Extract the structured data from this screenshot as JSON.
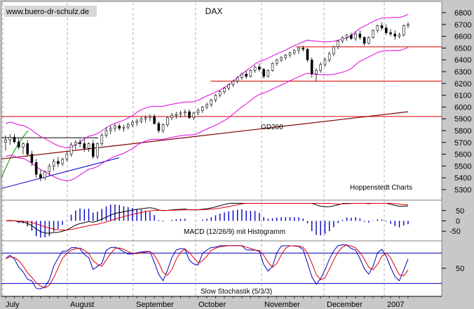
{
  "watermark": "www.buero-dr-schulz.de",
  "colors": {
    "panel_bg": "#c8c8c8",
    "plot_bg": "#ffffff",
    "candle_up": "#ffffff",
    "candle_down": "#000000",
    "bollinger": "#e000e0",
    "hline": "#e00000",
    "gd200": "#800000",
    "trend_blue": "#0000c0",
    "trend_green": "#00a000",
    "macd_line": "#000000",
    "signal_line": "#e00000",
    "histogram": "#0000c0",
    "stoch_k": "#0000c0",
    "stoch_d": "#e00000",
    "grid": "#909090"
  },
  "chart_data": [
    {
      "type": "candlestick",
      "title": "DAX",
      "source_label": "Hoppenstedt Charts",
      "y_ticks": [
        5300,
        5400,
        5500,
        5600,
        5700,
        5800,
        5900,
        6000,
        6100,
        6200,
        6300,
        6400,
        6500,
        6600,
        6700,
        6800
      ],
      "ylim": [
        5260,
        6850
      ],
      "x_labels": [
        "July",
        "August",
        "September",
        "October",
        "November",
        "December",
        "2007"
      ],
      "horizontal_lines": [
        5920,
        6220,
        6510
      ],
      "series": [
        {
          "name": "DAX",
          "points": [
            {
              "o": 5700,
              "h": 5760,
              "l": 5630,
              "c": 5720
            },
            {
              "o": 5720,
              "h": 5770,
              "l": 5680,
              "c": 5745
            },
            {
              "o": 5745,
              "h": 5770,
              "l": 5690,
              "c": 5705
            },
            {
              "o": 5705,
              "h": 5740,
              "l": 5640,
              "c": 5660
            },
            {
              "o": 5660,
              "h": 5700,
              "l": 5600,
              "c": 5690
            },
            {
              "o": 5690,
              "h": 5720,
              "l": 5580,
              "c": 5600
            },
            {
              "o": 5600,
              "h": 5630,
              "l": 5500,
              "c": 5530
            },
            {
              "o": 5530,
              "h": 5560,
              "l": 5400,
              "c": 5430
            },
            {
              "o": 5430,
              "h": 5470,
              "l": 5370,
              "c": 5400
            },
            {
              "o": 5400,
              "h": 5460,
              "l": 5380,
              "c": 5450
            },
            {
              "o": 5450,
              "h": 5520,
              "l": 5420,
              "c": 5500
            },
            {
              "o": 5500,
              "h": 5560,
              "l": 5460,
              "c": 5540
            },
            {
              "o": 5540,
              "h": 5580,
              "l": 5490,
              "c": 5520
            },
            {
              "o": 5520,
              "h": 5570,
              "l": 5500,
              "c": 5560
            },
            {
              "o": 5560,
              "h": 5620,
              "l": 5540,
              "c": 5600
            },
            {
              "o": 5600,
              "h": 5700,
              "l": 5580,
              "c": 5680
            },
            {
              "o": 5680,
              "h": 5720,
              "l": 5640,
              "c": 5700
            },
            {
              "o": 5700,
              "h": 5730,
              "l": 5660,
              "c": 5690
            },
            {
              "o": 5690,
              "h": 5730,
              "l": 5620,
              "c": 5650
            },
            {
              "o": 5650,
              "h": 5700,
              "l": 5620,
              "c": 5690
            },
            {
              "o": 5690,
              "h": 5720,
              "l": 5560,
              "c": 5580
            },
            {
              "o": 5580,
              "h": 5700,
              "l": 5560,
              "c": 5690
            },
            {
              "o": 5690,
              "h": 5780,
              "l": 5670,
              "c": 5760
            },
            {
              "o": 5760,
              "h": 5830,
              "l": 5740,
              "c": 5800
            },
            {
              "o": 5800,
              "h": 5840,
              "l": 5770,
              "c": 5820
            },
            {
              "o": 5820,
              "h": 5860,
              "l": 5790,
              "c": 5840
            },
            {
              "o": 5840,
              "h": 5860,
              "l": 5800,
              "c": 5820
            },
            {
              "o": 5820,
              "h": 5850,
              "l": 5790,
              "c": 5830
            },
            {
              "o": 5830,
              "h": 5870,
              "l": 5810,
              "c": 5850
            },
            {
              "o": 5850,
              "h": 5890,
              "l": 5830,
              "c": 5870
            },
            {
              "o": 5870,
              "h": 5900,
              "l": 5840,
              "c": 5880
            },
            {
              "o": 5880,
              "h": 5920,
              "l": 5860,
              "c": 5900
            },
            {
              "o": 5900,
              "h": 5930,
              "l": 5870,
              "c": 5910
            },
            {
              "o": 5910,
              "h": 5940,
              "l": 5880,
              "c": 5920
            },
            {
              "o": 5920,
              "h": 5940,
              "l": 5850,
              "c": 5860
            },
            {
              "o": 5860,
              "h": 5880,
              "l": 5780,
              "c": 5800
            },
            {
              "o": 5800,
              "h": 5860,
              "l": 5780,
              "c": 5850
            },
            {
              "o": 5850,
              "h": 5920,
              "l": 5830,
              "c": 5910
            },
            {
              "o": 5910,
              "h": 5950,
              "l": 5890,
              "c": 5930
            },
            {
              "o": 5930,
              "h": 5960,
              "l": 5900,
              "c": 5940
            },
            {
              "o": 5940,
              "h": 5970,
              "l": 5910,
              "c": 5950
            },
            {
              "o": 5950,
              "h": 5980,
              "l": 5920,
              "c": 5960
            },
            {
              "o": 5960,
              "h": 5980,
              "l": 5900,
              "c": 5910
            },
            {
              "o": 5910,
              "h": 5960,
              "l": 5890,
              "c": 5950
            },
            {
              "o": 5950,
              "h": 5990,
              "l": 5930,
              "c": 5970
            },
            {
              "o": 5970,
              "h": 6010,
              "l": 5950,
              "c": 6000
            },
            {
              "o": 6000,
              "h": 6040,
              "l": 5980,
              "c": 6020
            },
            {
              "o": 6020,
              "h": 6070,
              "l": 6000,
              "c": 6060
            },
            {
              "o": 6060,
              "h": 6110,
              "l": 6040,
              "c": 6100
            },
            {
              "o": 6100,
              "h": 6140,
              "l": 6080,
              "c": 6130
            },
            {
              "o": 6130,
              "h": 6170,
              "l": 6110,
              "c": 6160
            },
            {
              "o": 6160,
              "h": 6200,
              "l": 6140,
              "c": 6190
            },
            {
              "o": 6190,
              "h": 6230,
              "l": 6170,
              "c": 6220
            },
            {
              "o": 6220,
              "h": 6260,
              "l": 6200,
              "c": 6250
            },
            {
              "o": 6250,
              "h": 6290,
              "l": 6230,
              "c": 6280
            },
            {
              "o": 6280,
              "h": 6310,
              "l": 6240,
              "c": 6260
            },
            {
              "o": 6260,
              "h": 6320,
              "l": 6250,
              "c": 6310
            },
            {
              "o": 6310,
              "h": 6350,
              "l": 6290,
              "c": 6340
            },
            {
              "o": 6340,
              "h": 6370,
              "l": 6300,
              "c": 6320
            },
            {
              "o": 6320,
              "h": 6330,
              "l": 6240,
              "c": 6260
            },
            {
              "o": 6260,
              "h": 6320,
              "l": 6250,
              "c": 6310
            },
            {
              "o": 6310,
              "h": 6380,
              "l": 6300,
              "c": 6370
            },
            {
              "o": 6370,
              "h": 6410,
              "l": 6350,
              "c": 6400
            },
            {
              "o": 6400,
              "h": 6430,
              "l": 6380,
              "c": 6420
            },
            {
              "o": 6420,
              "h": 6450,
              "l": 6400,
              "c": 6440
            },
            {
              "o": 6440,
              "h": 6470,
              "l": 6420,
              "c": 6460
            },
            {
              "o": 6460,
              "h": 6490,
              "l": 6440,
              "c": 6480
            },
            {
              "o": 6480,
              "h": 6510,
              "l": 6450,
              "c": 6500
            },
            {
              "o": 6500,
              "h": 6520,
              "l": 6470,
              "c": 6490
            },
            {
              "o": 6490,
              "h": 6500,
              "l": 6380,
              "c": 6400
            },
            {
              "o": 6400,
              "h": 6420,
              "l": 6250,
              "c": 6280
            },
            {
              "o": 6280,
              "h": 6330,
              "l": 6220,
              "c": 6310
            },
            {
              "o": 6310,
              "h": 6380,
              "l": 6290,
              "c": 6360
            },
            {
              "o": 6360,
              "h": 6420,
              "l": 6340,
              "c": 6400
            },
            {
              "o": 6400,
              "h": 6470,
              "l": 6380,
              "c": 6450
            },
            {
              "o": 6450,
              "h": 6520,
              "l": 6430,
              "c": 6510
            },
            {
              "o": 6510,
              "h": 6570,
              "l": 6490,
              "c": 6560
            },
            {
              "o": 6560,
              "h": 6600,
              "l": 6540,
              "c": 6590
            },
            {
              "o": 6590,
              "h": 6620,
              "l": 6560,
              "c": 6610
            },
            {
              "o": 6610,
              "h": 6630,
              "l": 6570,
              "c": 6580
            },
            {
              "o": 6580,
              "h": 6640,
              "l": 6560,
              "c": 6620
            },
            {
              "o": 6620,
              "h": 6650,
              "l": 6570,
              "c": 6590
            },
            {
              "o": 6590,
              "h": 6600,
              "l": 6520,
              "c": 6540
            },
            {
              "o": 6540,
              "h": 6600,
              "l": 6530,
              "c": 6590
            },
            {
              "o": 6590,
              "h": 6660,
              "l": 6580,
              "c": 6650
            },
            {
              "o": 6650,
              "h": 6700,
              "l": 6630,
              "c": 6690
            },
            {
              "o": 6690,
              "h": 6720,
              "l": 6650,
              "c": 6670
            },
            {
              "o": 6670,
              "h": 6700,
              "l": 6610,
              "c": 6630
            },
            {
              "o": 6630,
              "h": 6660,
              "l": 6600,
              "c": 6620
            },
            {
              "o": 6620,
              "h": 6650,
              "l": 6570,
              "c": 6600
            },
            {
              "o": 6600,
              "h": 6630,
              "l": 6580,
              "c": 6610
            },
            {
              "o": 6610,
              "h": 6700,
              "l": 6600,
              "c": 6690
            },
            {
              "o": 6690,
              "h": 6720,
              "l": 6670,
              "c": 6700
            }
          ]
        },
        {
          "name": "GD200",
          "values": [
            5560,
            5960
          ]
        },
        {
          "name": "Bollinger",
          "band_width": 140
        }
      ]
    },
    {
      "type": "bar",
      "title": "MACD (12/26/9) mit Histogramm",
      "y_ticks": [
        50,
        0,
        -50
      ],
      "ylim": [
        -90,
        90
      ]
    },
    {
      "type": "line",
      "title": "Slow Stochastik (5/3/3)",
      "y_ticks": [
        50
      ],
      "ylim": [
        0,
        100
      ],
      "horizontal_lines": [
        20,
        80
      ]
    }
  ]
}
